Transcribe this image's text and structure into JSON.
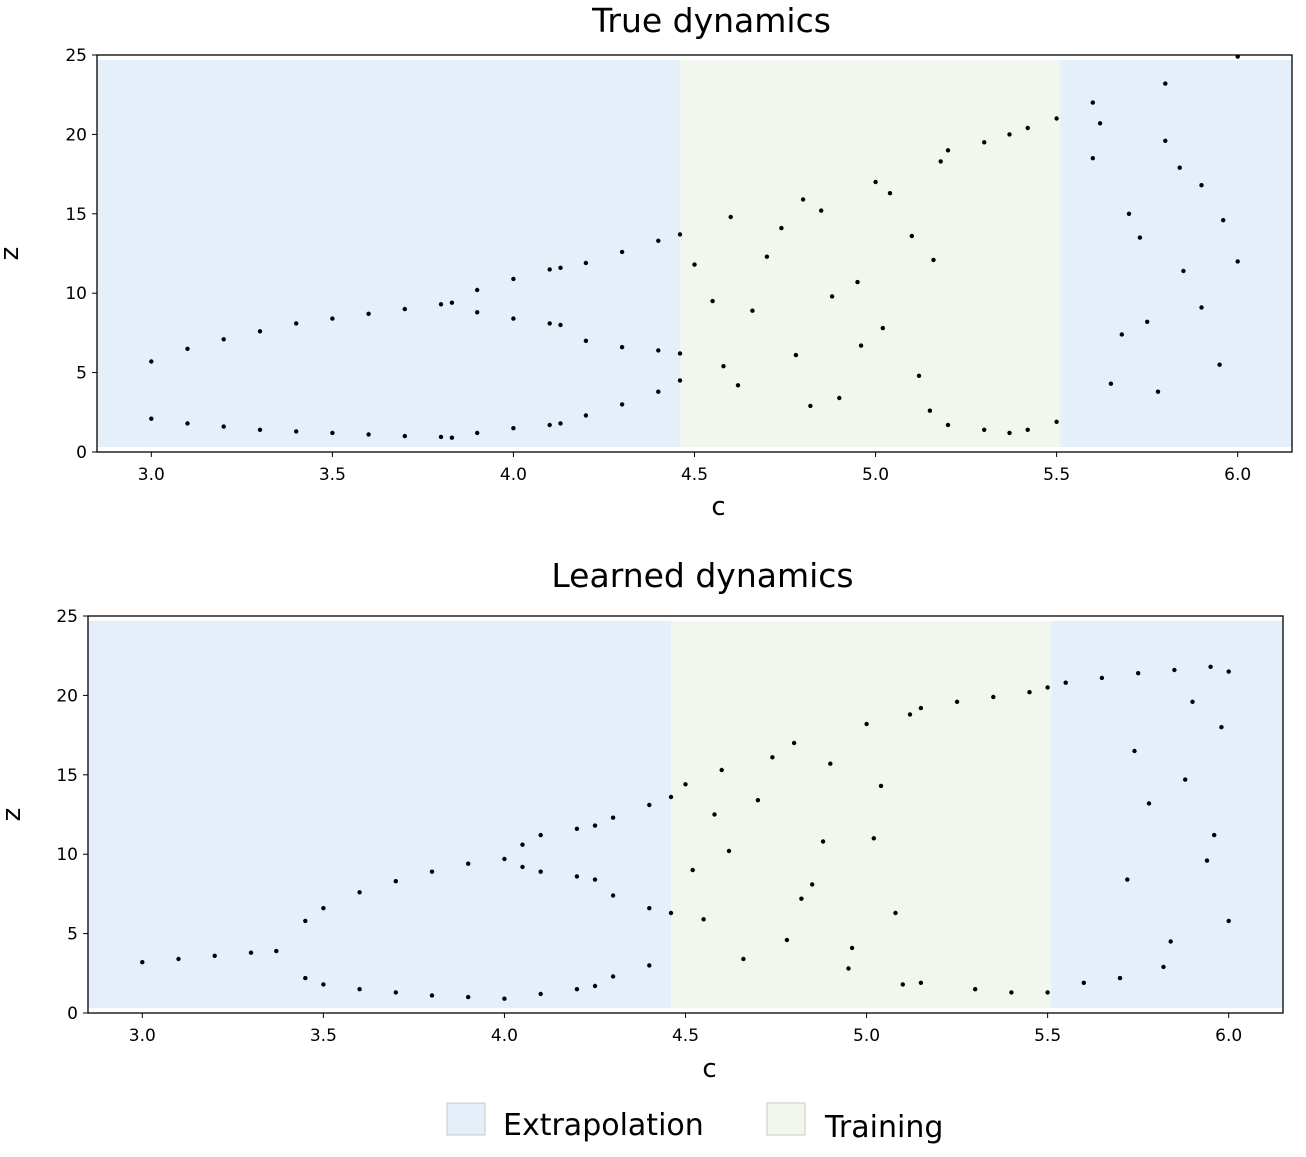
{
  "chart_data": [
    {
      "type": "scatter",
      "title": "True dynamics",
      "xlabel": "c",
      "ylabel": "z",
      "xlim": [
        2.85,
        6.15
      ],
      "ylim": [
        0,
        25
      ],
      "xticks": [
        "3.0",
        "3.5",
        "4.0",
        "4.5",
        "5.0",
        "5.5",
        "6.0"
      ],
      "yticks": [
        "0",
        "5",
        "10",
        "15",
        "20",
        "25"
      ],
      "grid": false,
      "regions": [
        {
          "label": "Extrapolation",
          "x": [
            2.85,
            4.46
          ],
          "color": "#e4eff9"
        },
        {
          "label": "Training",
          "x": [
            4.46,
            5.51
          ],
          "color": "#f1f7ee"
        },
        {
          "label": "Extrapolation",
          "x": [
            5.51,
            6.15
          ],
          "color": "#e4eff9"
        }
      ],
      "series": [
        {
          "marker_color": "#000000",
          "x": [
            3.0,
            3.1,
            3.2,
            3.3,
            3.4,
            3.5,
            3.6,
            3.7,
            3.8,
            3.83,
            3.0,
            3.1,
            3.2,
            3.3,
            3.4,
            3.5,
            3.6,
            3.7,
            3.8,
            3.83,
            3.9,
            4.0,
            4.1,
            4.13,
            3.9,
            4.0,
            4.1,
            4.13,
            3.9,
            4.0,
            4.1,
            4.13,
            4.2,
            4.3,
            4.4,
            4.46,
            4.2,
            4.3,
            4.4,
            4.46,
            4.2,
            4.3,
            4.4,
            4.46,
            4.6,
            4.8,
            5.0,
            5.18,
            5.2,
            5.3,
            5.37,
            5.42,
            5.5,
            5.2,
            5.3,
            5.37,
            5.42,
            5.5,
            5.6,
            5.8,
            6.0,
            4.55,
            4.62,
            4.7,
            4.78,
            4.85,
            4.9,
            4.95,
            5.02,
            5.1,
            5.15,
            4.5,
            4.58,
            4.66,
            4.74,
            4.82,
            4.88,
            4.96,
            5.04,
            5.12,
            5.16,
            5.6,
            5.65,
            5.7,
            5.75,
            5.8,
            5.85,
            5.9,
            5.95,
            6.0,
            5.62,
            5.68,
            5.73,
            5.78,
            5.84,
            5.9,
            5.96
          ],
          "y": [
            5.7,
            6.5,
            7.1,
            7.6,
            8.1,
            8.4,
            8.7,
            9.0,
            9.3,
            9.4,
            2.1,
            1.8,
            1.6,
            1.4,
            1.3,
            1.2,
            1.1,
            1.0,
            0.95,
            0.9,
            10.2,
            10.9,
            11.5,
            11.6,
            8.8,
            8.4,
            8.1,
            8.0,
            1.2,
            1.5,
            1.7,
            1.8,
            11.9,
            12.6,
            13.3,
            13.7,
            7.0,
            6.6,
            6.4,
            6.2,
            2.3,
            3.0,
            3.8,
            4.5,
            14.8,
            15.9,
            17.0,
            18.3,
            19.0,
            19.5,
            20.0,
            20.4,
            21.0,
            1.7,
            1.4,
            1.2,
            1.4,
            1.9,
            22.0,
            23.2,
            24.9,
            9.5,
            4.2,
            12.3,
            6.1,
            15.2,
            3.4,
            10.7,
            7.8,
            13.6,
            2.6,
            11.8,
            5.4,
            8.9,
            14.1,
            2.9,
            9.8,
            6.7,
            16.3,
            4.8,
            12.1,
            18.5,
            4.3,
            15.0,
            8.2,
            19.6,
            11.4,
            16.8,
            5.5,
            12.0,
            20.7,
            7.4,
            13.5,
            3.8,
            17.9,
            9.1,
            14.6
          ]
        }
      ]
    },
    {
      "type": "scatter",
      "title": "Learned dynamics",
      "xlabel": "c",
      "ylabel": "z",
      "xlim": [
        2.85,
        6.15
      ],
      "ylim": [
        0,
        25
      ],
      "xticks": [
        "3.0",
        "3.5",
        "4.0",
        "4.5",
        "5.0",
        "5.5",
        "6.0"
      ],
      "yticks": [
        "0",
        "5",
        "10",
        "15",
        "20",
        "25"
      ],
      "grid": false,
      "regions": [
        {
          "label": "Extrapolation",
          "x": [
            2.85,
            4.46
          ],
          "color": "#e4eff9"
        },
        {
          "label": "Training",
          "x": [
            4.46,
            5.51
          ],
          "color": "#f1f7ee"
        },
        {
          "label": "Extrapolation",
          "x": [
            5.51,
            6.15
          ],
          "color": "#e4eff9"
        }
      ],
      "series": [
        {
          "marker_color": "#000000",
          "x": [
            3.0,
            3.1,
            3.2,
            3.3,
            3.37,
            3.45,
            3.5,
            3.6,
            3.7,
            3.8,
            3.9,
            4.0,
            3.45,
            3.5,
            3.6,
            3.7,
            3.8,
            3.9,
            4.0,
            4.05,
            4.1,
            4.2,
            4.25,
            4.05,
            4.1,
            4.2,
            4.25,
            4.1,
            4.2,
            4.25,
            4.3,
            4.4,
            4.46,
            4.3,
            4.4,
            4.46,
            4.3,
            4.4,
            4.5,
            4.6,
            4.8,
            5.0,
            5.12,
            5.15,
            5.25,
            5.35,
            5.45,
            5.5,
            5.15,
            5.3,
            5.4,
            5.5,
            5.55,
            5.65,
            5.75,
            5.85,
            5.95,
            6.0,
            5.6,
            5.7,
            4.55,
            4.62,
            4.7,
            4.78,
            4.85,
            4.9,
            4.95,
            5.02,
            5.08,
            4.52,
            4.58,
            4.66,
            4.74,
            4.82,
            4.88,
            4.96,
            5.04,
            5.1,
            5.72,
            5.78,
            5.84,
            5.9,
            5.96,
            6.0,
            5.74,
            5.82,
            5.88,
            5.94,
            5.98
          ],
          "y": [
            3.2,
            3.4,
            3.6,
            3.8,
            3.9,
            5.8,
            6.6,
            7.6,
            8.3,
            8.9,
            9.4,
            9.7,
            2.2,
            1.8,
            1.5,
            1.3,
            1.1,
            1.0,
            0.9,
            10.6,
            11.2,
            11.6,
            11.8,
            9.2,
            8.9,
            8.6,
            8.4,
            1.2,
            1.5,
            1.7,
            12.3,
            13.1,
            13.6,
            7.4,
            6.6,
            6.3,
            2.3,
            3.0,
            14.4,
            15.3,
            17.0,
            18.2,
            18.8,
            19.2,
            19.6,
            19.9,
            20.2,
            20.5,
            1.9,
            1.5,
            1.3,
            1.3,
            20.8,
            21.1,
            21.4,
            21.6,
            21.8,
            21.5,
            1.9,
            2.2,
            5.9,
            10.2,
            13.4,
            4.6,
            8.1,
            15.7,
            2.8,
            11.0,
            6.3,
            9.0,
            12.5,
            3.4,
            16.1,
            7.2,
            10.8,
            4.1,
            14.3,
            1.8,
            8.4,
            13.2,
            4.5,
            19.6,
            11.2,
            5.8,
            16.5,
            2.9,
            14.7,
            9.6,
            18.0
          ]
        }
      ]
    }
  ],
  "legend": {
    "items": [
      {
        "label": "Extrapolation",
        "color": "#e4eff9"
      },
      {
        "label": "Training",
        "color": "#f1f7ee"
      }
    ]
  }
}
